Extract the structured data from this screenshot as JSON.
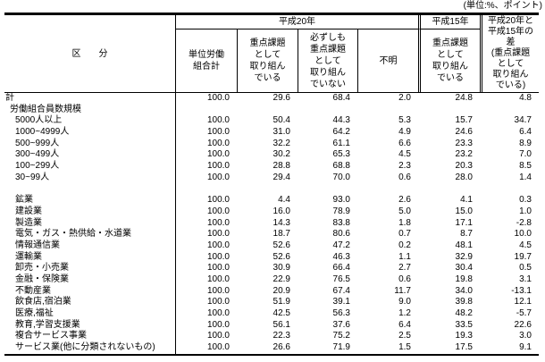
{
  "unit_note": "(単位:%、ポイント)",
  "colors": {
    "border": "#000000",
    "text": "#000000",
    "background": "#ffffff"
  },
  "chart_data": {
    "type": "table",
    "title": "",
    "unit": "%、ポイント",
    "row_header": "区　　分",
    "groups": {
      "h20": "平成20年",
      "h15": "平成15年"
    },
    "columns": [
      "単位労働\n組合計",
      "重点課題\nとして\n取り組ん\nでいる",
      "必ずしも\n重点課題\nとして\n取り組ん\nでいない",
      "不明",
      "重点課題\nとして\n取り組ん\nでいる",
      "平成20年と\n平成15年の\n差\n(重点課題\nとして\n取り組ん\nでいる)"
    ],
    "rows": [
      {
        "label": "計",
        "indent": 0,
        "values": [
          "100.0",
          "29.6",
          "68.4",
          "2.0",
          "24.8",
          "4.8"
        ]
      },
      {
        "label": "労働組合員数規模",
        "indent": 1,
        "values": []
      },
      {
        "label": "5000人以上",
        "indent": 2,
        "values": [
          "100.0",
          "50.4",
          "44.3",
          "5.3",
          "15.7",
          "34.7"
        ]
      },
      {
        "label": "1000~4999人",
        "indent": 2,
        "values": [
          "100.0",
          "31.0",
          "64.2",
          "4.9",
          "24.6",
          "6.4"
        ]
      },
      {
        "label": "500~999人",
        "indent": 2,
        "values": [
          "100.0",
          "32.2",
          "61.1",
          "6.6",
          "23.3",
          "8.9"
        ]
      },
      {
        "label": "300~499人",
        "indent": 2,
        "values": [
          "100.0",
          "30.2",
          "65.3",
          "4.5",
          "23.2",
          "7.0"
        ]
      },
      {
        "label": "100~299人",
        "indent": 2,
        "values": [
          "100.0",
          "28.8",
          "68.8",
          "2.3",
          "20.3",
          "8.5"
        ]
      },
      {
        "label": "30~99人",
        "indent": 2,
        "values": [
          "100.0",
          "29.4",
          "70.0",
          "0.6",
          "28.0",
          "1.4"
        ]
      },
      {
        "label": "",
        "indent": 0,
        "values": []
      },
      {
        "label": "鉱業",
        "indent": 2,
        "values": [
          "100.0",
          "4.4",
          "93.0",
          "2.6",
          "4.1",
          "0.3"
        ]
      },
      {
        "label": "建設業",
        "indent": 2,
        "values": [
          "100.0",
          "16.0",
          "78.9",
          "5.0",
          "15.0",
          "1.0"
        ]
      },
      {
        "label": "製造業",
        "indent": 2,
        "values": [
          "100.0",
          "14.3",
          "83.8",
          "1.8",
          "17.1",
          "-2.8"
        ]
      },
      {
        "label": "電気・ガス・熱供給・水道業",
        "indent": 2,
        "values": [
          "100.0",
          "18.7",
          "80.6",
          "0.7",
          "8.7",
          "10.0"
        ]
      },
      {
        "label": "情報通信業",
        "indent": 2,
        "values": [
          "100.0",
          "52.6",
          "47.2",
          "0.2",
          "48.1",
          "4.5"
        ]
      },
      {
        "label": "運輸業",
        "indent": 2,
        "values": [
          "100.0",
          "52.6",
          "46.3",
          "1.1",
          "32.9",
          "19.7"
        ]
      },
      {
        "label": "卸売・小売業",
        "indent": 2,
        "values": [
          "100.0",
          "30.9",
          "66.4",
          "2.7",
          "30.4",
          "0.5"
        ]
      },
      {
        "label": "金融・保険業",
        "indent": 2,
        "values": [
          "100.0",
          "22.9",
          "76.5",
          "0.6",
          "19.8",
          "3.1"
        ]
      },
      {
        "label": "不動産業",
        "indent": 2,
        "values": [
          "100.0",
          "20.9",
          "67.4",
          "11.7",
          "34.0",
          "-13.1"
        ]
      },
      {
        "label": "飲食店,宿泊業",
        "indent": 2,
        "values": [
          "100.0",
          "51.9",
          "39.1",
          "9.0",
          "39.8",
          "12.1"
        ]
      },
      {
        "label": "医療,福祉",
        "indent": 2,
        "values": [
          "100.0",
          "42.5",
          "56.3",
          "1.2",
          "48.2",
          "-5.7"
        ]
      },
      {
        "label": "教育,学習支援業",
        "indent": 2,
        "values": [
          "100.0",
          "56.1",
          "37.6",
          "6.4",
          "33.5",
          "22.6"
        ]
      },
      {
        "label": "複合サービス事業",
        "indent": 2,
        "values": [
          "100.0",
          "22.3",
          "75.2",
          "2.5",
          "19.3",
          "3.0"
        ]
      },
      {
        "label": "サービス業(他に分類されないもの)",
        "indent": 2,
        "values": [
          "100.0",
          "26.6",
          "71.9",
          "1.5",
          "17.5",
          "9.1"
        ]
      }
    ]
  }
}
